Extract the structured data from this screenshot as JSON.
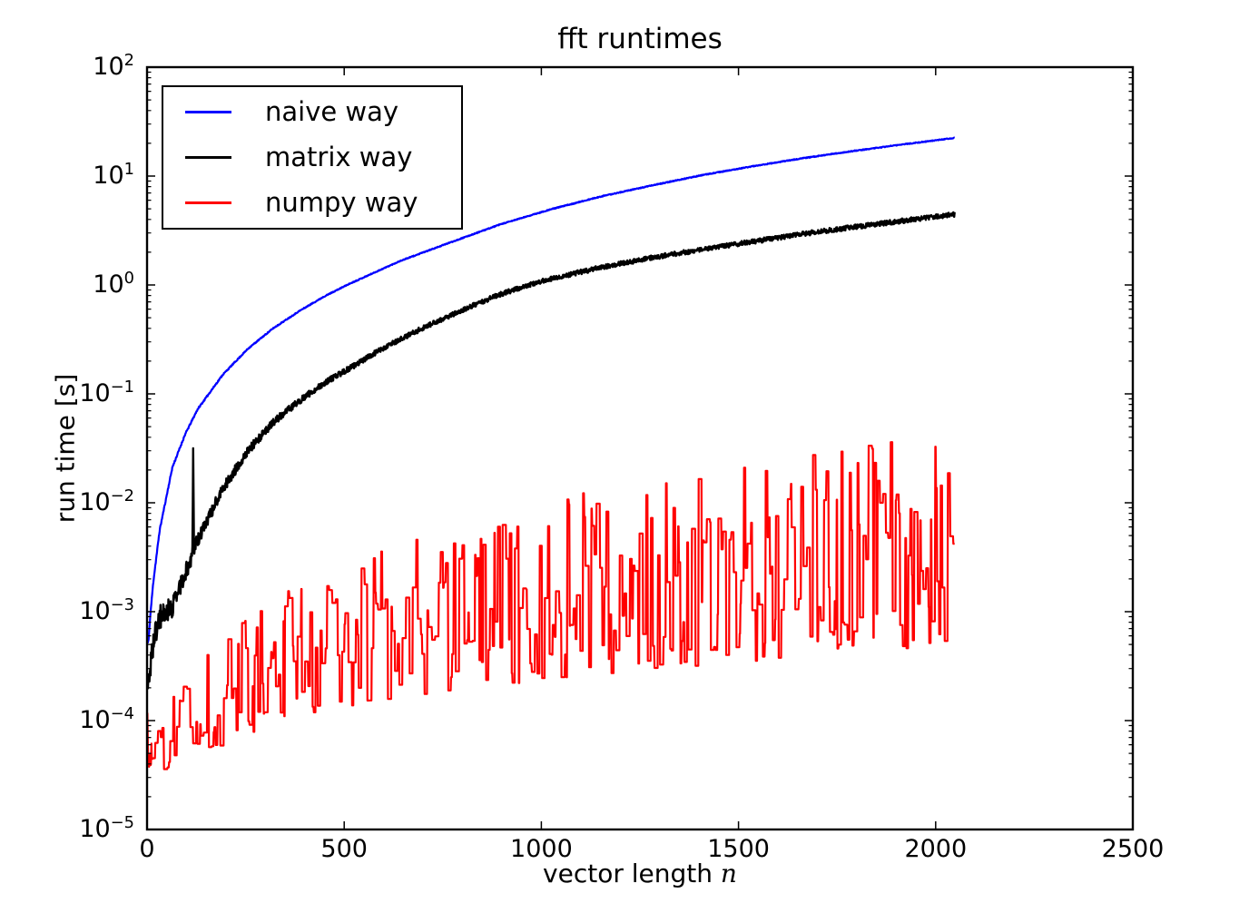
{
  "figure": {
    "title": "fft runtimes",
    "background_color": "#ffffff",
    "axes_color": "#000000",
    "chart_data": {
      "type": "line",
      "title": "fft runtimes",
      "xlabel_text": "vector length",
      "xlabel_math_symbol": "n",
      "ylabel": "run time [s]",
      "x_range": [
        0,
        2500
      ],
      "y_scale": "log",
      "y_range": [
        1e-05,
        100
      ],
      "x_ticks": [
        0,
        500,
        1000,
        1500,
        2000,
        2500
      ],
      "y_tick_exponents": [
        2,
        1,
        0,
        -1,
        -2,
        -3,
        -4,
        -5
      ],
      "grid": false,
      "legend_position": "upper left",
      "n_max_points": 2048,
      "series": [
        {
          "name": "naive way",
          "color": "#0000ff",
          "width": 2.2,
          "noise_dex": 0.004,
          "noise_boost": 2,
          "anchors": [
            [
              1,
              0.00058
            ],
            [
              2,
              0.00052
            ],
            [
              4,
              0.00055
            ],
            [
              8,
              0.0009
            ],
            [
              16,
              0.0019
            ],
            [
              32,
              0.0056
            ],
            [
              64,
              0.021
            ],
            [
              96,
              0.042
            ],
            [
              128,
              0.072
            ],
            [
              192,
              0.15
            ],
            [
              256,
              0.26
            ],
            [
              320,
              0.4
            ],
            [
              384,
              0.57
            ],
            [
              448,
              0.78
            ],
            [
              512,
              1.02
            ],
            [
              640,
              1.65
            ],
            [
              768,
              2.45
            ],
            [
              896,
              3.6
            ],
            [
              1024,
              4.95
            ],
            [
              1152,
              6.5
            ],
            [
              1280,
              8.2
            ],
            [
              1408,
              10.2
            ],
            [
              1536,
              12.3
            ],
            [
              1664,
              14.6
            ],
            [
              1792,
              17.0
            ],
            [
              1920,
              19.6
            ],
            [
              2048,
              22.4
            ]
          ]
        },
        {
          "name": "matrix way",
          "color": "#000000",
          "width": 2.4,
          "noise_dex": 0.022,
          "noise_boost": 5,
          "spikes": [
            [
              117,
              8
            ]
          ],
          "anchors": [
            [
              1,
              0.00023
            ],
            [
              3,
              0.0002
            ],
            [
              8,
              0.00031
            ],
            [
              16,
              0.00052
            ],
            [
              32,
              0.0009
            ],
            [
              64,
              0.0011
            ],
            [
              96,
              0.0022
            ],
            [
              128,
              0.0045
            ],
            [
              192,
              0.0135
            ],
            [
              256,
              0.03
            ],
            [
              320,
              0.055
            ],
            [
              384,
              0.085
            ],
            [
              448,
              0.125
            ],
            [
              512,
              0.17
            ],
            [
              576,
              0.235
            ],
            [
              640,
              0.315
            ],
            [
              704,
              0.41
            ],
            [
              768,
              0.52
            ],
            [
              832,
              0.66
            ],
            [
              896,
              0.82
            ],
            [
              960,
              0.98
            ],
            [
              1024,
              1.14
            ],
            [
              1152,
              1.45
            ],
            [
              1280,
              1.78
            ],
            [
              1408,
              2.12
            ],
            [
              1536,
              2.5
            ],
            [
              1664,
              2.95
            ],
            [
              1792,
              3.4
            ],
            [
              1920,
              3.9
            ],
            [
              2048,
              4.45
            ]
          ]
        },
        {
          "name": "numpy way",
          "color": "#ff0000",
          "width": 2.2,
          "lower_envelope": [
            [
              1,
              0.000115
            ],
            [
              2,
              4.5e-05
            ],
            [
              4,
              3.4e-05
            ],
            [
              16,
              3.3e-05
            ],
            [
              64,
              3.8e-05
            ],
            [
              128,
              4.8e-05
            ],
            [
              256,
              7.5e-05
            ],
            [
              384,
              0.000105
            ],
            [
              512,
              0.00013
            ],
            [
              640,
              0.000155
            ],
            [
              768,
              0.00018
            ],
            [
              896,
              0.00021
            ],
            [
              1024,
              0.00024
            ],
            [
              1280,
              0.00029
            ],
            [
              1536,
              0.00035
            ],
            [
              1792,
              0.00042
            ],
            [
              2048,
              0.0005
            ]
          ],
          "upper_envelope": [
            [
              1,
              0.00013
            ],
            [
              2,
              6e-05
            ],
            [
              4,
              4.5e-05
            ],
            [
              16,
              8e-05
            ],
            [
              64,
              0.00018
            ],
            [
              128,
              0.00036
            ],
            [
              256,
              0.0009
            ],
            [
              384,
              0.0018
            ],
            [
              512,
              0.003
            ],
            [
              640,
              0.0042
            ],
            [
              768,
              0.0056
            ],
            [
              896,
              0.0075
            ],
            [
              1024,
              0.0105
            ],
            [
              1280,
              0.017
            ],
            [
              1536,
              0.025
            ],
            [
              1792,
              0.033
            ],
            [
              2048,
              0.044
            ]
          ]
        }
      ]
    }
  }
}
